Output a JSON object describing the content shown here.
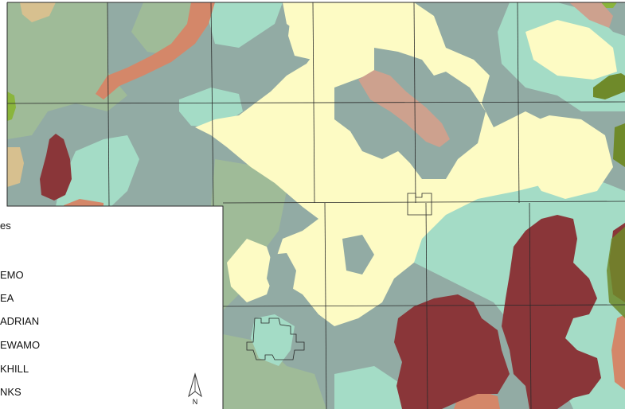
{
  "legend": {
    "title": "es",
    "items": [
      {
        "label": "EMO"
      },
      {
        "label": "EA"
      },
      {
        "label": "ADRIAN"
      },
      {
        "label": "EWAMO"
      },
      {
        "label": "KHILL"
      },
      {
        "label": "NKS"
      }
    ]
  },
  "north_arrow": {
    "label": "N"
  },
  "colors": {
    "yellow_cream": "#fdfbc4",
    "mint": "#a4dcc6",
    "slate": "#92aba4",
    "sage": "#9fbb98",
    "maroon": "#8a3639",
    "salmon": "#d48769",
    "dusty_rose": "#cda18e",
    "olive": "#6f8a2a",
    "lime": "#8ab53c",
    "tan": "#d7c08f",
    "line": "#2a2a2a"
  }
}
